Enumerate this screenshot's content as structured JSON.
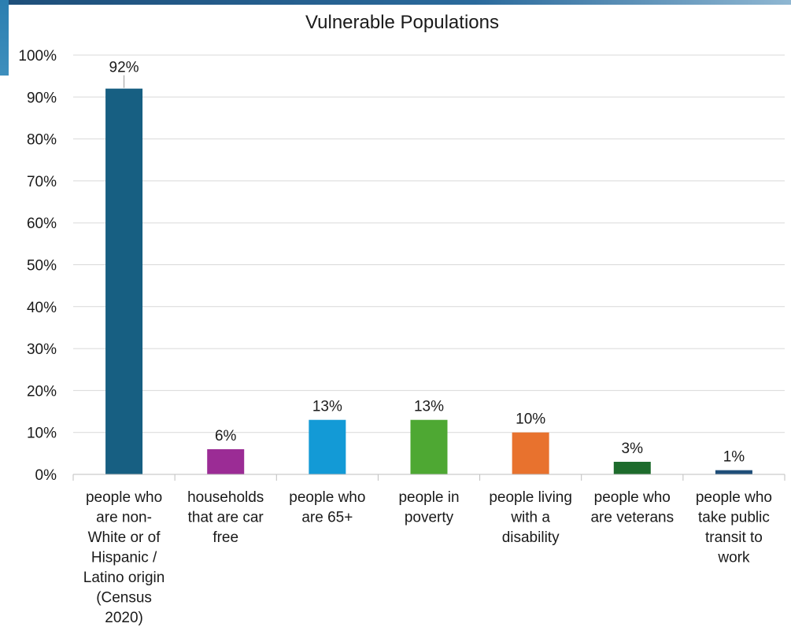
{
  "chart_data": {
    "type": "bar",
    "title": "Vulnerable Populations",
    "xlabel": "",
    "ylabel": "",
    "ylim": [
      0,
      100
    ],
    "yticks": [
      "0%",
      "10%",
      "20%",
      "30%",
      "40%",
      "50%",
      "60%",
      "70%",
      "80%",
      "90%",
      "100%"
    ],
    "grid": true,
    "legend": "none",
    "categories": [
      [
        "people who",
        "are non-",
        "White or of",
        "Hispanic /",
        "Latino origin",
        "(Census",
        "2020)"
      ],
      [
        "households",
        "that are car",
        "free"
      ],
      [
        "people who",
        "are 65+"
      ],
      [
        "people in",
        "poverty"
      ],
      [
        "people living",
        "with a",
        "disability"
      ],
      [
        "people who",
        "are veterans"
      ],
      [
        "people who",
        "take public",
        "transit to",
        "work"
      ]
    ],
    "values": [
      92,
      6,
      13,
      13,
      10,
      3,
      1
    ],
    "data_labels": [
      "92%",
      "6%",
      "13%",
      "13%",
      "10%",
      "3%",
      "1%"
    ],
    "colors": [
      "#175f82",
      "#9b2c95",
      "#139ad6",
      "#4ea833",
      "#e8722e",
      "#1d6b2c",
      "#1f4e79"
    ]
  }
}
